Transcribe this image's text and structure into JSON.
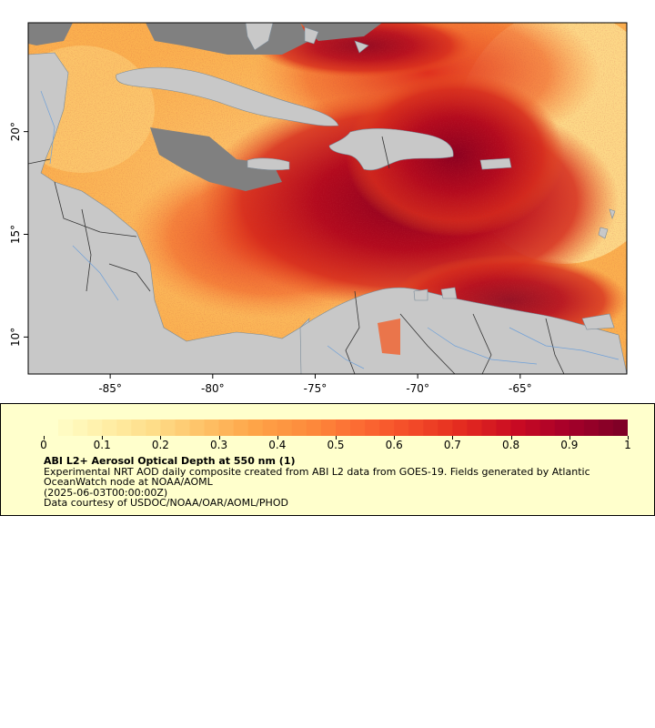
{
  "map": {
    "x_axis": {
      "ticks": [
        "-85°",
        "-80°",
        "-75°",
        "-70°",
        "-65°"
      ],
      "values": [
        -85,
        -80,
        -75,
        -70,
        -65
      ]
    },
    "y_axis": {
      "ticks": [
        "10°",
        "15°",
        "20°"
      ],
      "values": [
        10,
        15,
        20
      ]
    },
    "lon_range": [
      -89.0,
      -59.8
    ],
    "lat_range": [
      8.2,
      25.3
    ],
    "colors": {
      "land": "#c8c8c8",
      "no_data": "#808080",
      "coastline": "#7a8b99",
      "rivers": "#6fa0d8",
      "borders": "#333333"
    }
  },
  "legend": {
    "colorbar_labels": [
      "0",
      "0.1",
      "0.2",
      "0.3",
      "0.4",
      "0.5",
      "0.6",
      "0.7",
      "0.8",
      "0.9",
      "1"
    ],
    "colorbar_values": [
      0,
      0.1,
      0.2,
      0.3,
      0.4,
      0.5,
      0.6,
      0.7,
      0.8,
      0.9,
      1
    ],
    "colormap": [
      "#ffffcc",
      "#fff0a8",
      "#fedc88",
      "#fec065",
      "#fea246",
      "#fd8a3c",
      "#fc6a32",
      "#f34a28",
      "#e2291f",
      "#c90a23",
      "#a5002a",
      "#800026"
    ],
    "title": "ABI L2+ Aerosol Optical Depth at 550 nm (1)",
    "description": "Experimental NRT AOD daily composite created from ABI L2 data from GOES-19. Fields generated by Atlantic OceanWatch node at NOAA/AOML",
    "time": "(2025-06-03T00:00:00Z)",
    "credit": "Data courtesy of USDOC/NOAA/OAR/AOML/PHOD"
  }
}
